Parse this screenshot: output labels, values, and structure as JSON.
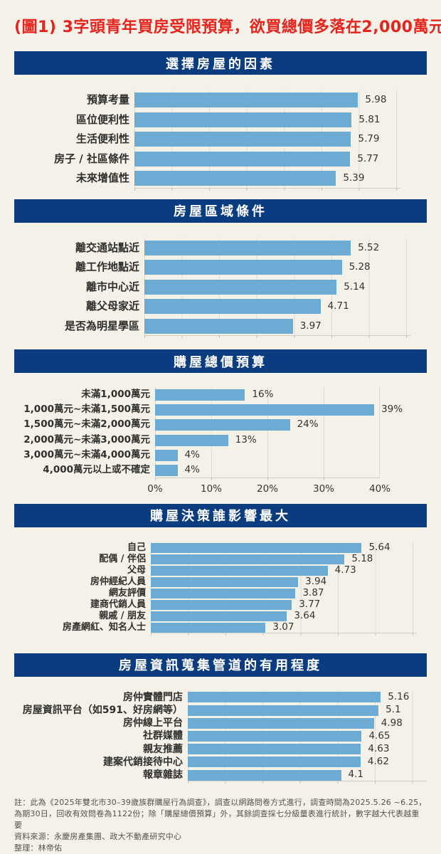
{
  "page": {
    "title": "(圖1) 3字頭青年買房受限預算，欲買總價多落在2,000萬元內",
    "colors": {
      "background": "#f4f1e9",
      "header_navy": "#0c3c80",
      "bar_blue": "#6cacd4",
      "title_red": "#e6231c"
    }
  },
  "chart_data": [
    {
      "type": "bar",
      "orientation": "horizontal",
      "title": "選擇房屋的因素",
      "xlim": [
        0,
        7
      ],
      "grid": true,
      "categories": [
        "預算考量",
        "區位便利性",
        "生活便利性",
        "房子 / 社區條件",
        "未來增值性"
      ],
      "values": [
        5.98,
        5.81,
        5.79,
        5.77,
        5.39
      ],
      "value_labels": [
        "5.98",
        "5.81",
        "5.79",
        "5.77",
        "5.39"
      ]
    },
    {
      "type": "bar",
      "orientation": "horizontal",
      "title": "房屋區域條件",
      "xlim": [
        0,
        7
      ],
      "grid": true,
      "categories": [
        "離交通站點近",
        "離工作地點近",
        "離市中心近",
        "離父母家近",
        "是否為明星學區"
      ],
      "values": [
        5.52,
        5.28,
        5.14,
        4.71,
        3.97
      ],
      "value_labels": [
        "5.52",
        "5.28",
        "5.14",
        "4.71",
        "3.97"
      ]
    },
    {
      "type": "bar",
      "orientation": "horizontal",
      "title": "購屋總價預算",
      "xlim": [
        0,
        40
      ],
      "grid": true,
      "x_ticks": [
        "0%",
        "10%",
        "20%",
        "30%",
        "40%"
      ],
      "categories": [
        "未滿1,000萬元",
        "1,000萬元~未滿1,500萬元",
        "1,500萬元~未滿2,000萬元",
        "2,000萬元~未滿3,000萬元",
        "3,000萬元~未滿4,000萬元",
        "4,000萬元以上或不確定"
      ],
      "values": [
        16,
        39,
        24,
        13,
        4,
        4
      ],
      "value_labels": [
        "16%",
        "39%",
        "24%",
        "13%",
        "4%",
        "4%"
      ]
    },
    {
      "type": "bar",
      "orientation": "horizontal",
      "title": "購屋決策誰影響最大",
      "xlim": [
        0,
        7
      ],
      "grid": true,
      "categories": [
        "自己",
        "配偶 / 伴侶",
        "父母",
        "房仲經紀人員",
        "網友評價",
        "建商代銷人員",
        "親戚 / 朋友",
        "房產網紅、知名人士"
      ],
      "values": [
        5.64,
        5.18,
        4.73,
        3.94,
        3.87,
        3.77,
        3.64,
        3.07
      ],
      "value_labels": [
        "5.64",
        "5.18",
        "4.73",
        "3.94",
        "3.87",
        "3.77",
        "3.64",
        "3.07"
      ]
    },
    {
      "type": "bar",
      "orientation": "horizontal",
      "title": "房屋資訊蒐集管道的有用程度",
      "xlim": [
        0,
        7
      ],
      "grid": true,
      "categories": [
        "房仲實體門店",
        "房屋資訊平台（如591、好房網等）",
        "房仲線上平台",
        "社群媒體",
        "親友推薦",
        "建案代銷接待中心",
        "報章雜誌"
      ],
      "values": [
        5.16,
        5.1,
        4.98,
        4.65,
        4.63,
        4.62,
        4.1
      ],
      "value_labels": [
        "5.16",
        "5.1",
        "4.98",
        "4.65",
        "4.63",
        "4.62",
        "4.1"
      ]
    }
  ],
  "footnote": {
    "note": "註：此為《2025年雙北市30–39歲族群購屋行為調查》，調查以網路問卷方式進行，調查時間為2025.5.26 ~6.25，為期30日，回收有效問卷為1122份；除「購屋總價預算」外，其餘調查採七分級量表進行統計，數字越大代表越重要",
    "source": "資料來源：永慶房產集團、政大不動產研究中心",
    "credit": "整理：林帝佑"
  }
}
